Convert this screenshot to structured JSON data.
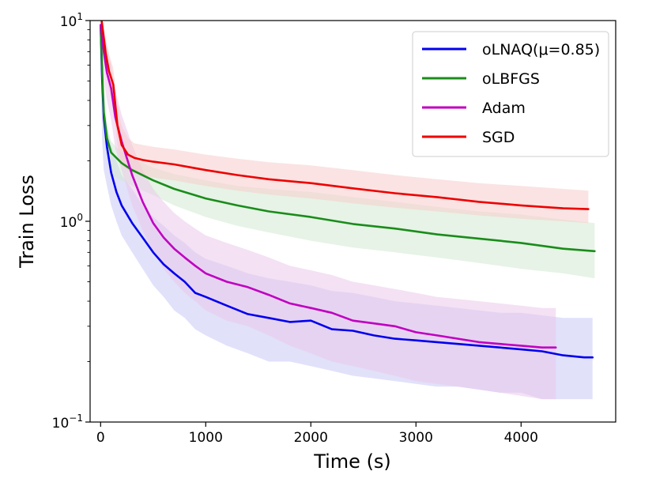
{
  "chart_data": {
    "type": "line",
    "title": "",
    "xlabel": "Time (s)",
    "ylabel": "Train Loss",
    "xscale": "linear",
    "yscale": "log",
    "xlim": [
      -100,
      4900
    ],
    "ylim": [
      0.1,
      10
    ],
    "xticks": [
      0,
      1000,
      2000,
      3000,
      4000
    ],
    "xtick_labels": [
      "0",
      "1000",
      "2000",
      "3000",
      "4000"
    ],
    "yticks": [
      {
        "value": 0.1,
        "base": "10",
        "exp": "−1"
      },
      {
        "value": 1,
        "base": "10",
        "exp": "0"
      },
      {
        "value": 10,
        "base": "10",
        "exp": "1"
      }
    ],
    "grid": false,
    "legend_position": "top-right",
    "series": [
      {
        "name": "oLNAQ(μ=0.85)",
        "color": "#0000ee",
        "band_color": "#c9c9f5",
        "x": [
          0,
          15,
          30,
          60,
          100,
          150,
          200,
          300,
          400,
          500,
          600,
          700,
          800,
          900,
          1000,
          1200,
          1400,
          1600,
          1800,
          2000,
          2200,
          2400,
          2600,
          2800,
          3000,
          3200,
          3400,
          3600,
          3800,
          4000,
          4200,
          4400,
          4600,
          4680
        ],
        "y": [
          9.5,
          5.0,
          3.3,
          2.35,
          1.75,
          1.4,
          1.2,
          0.98,
          0.83,
          0.7,
          0.61,
          0.55,
          0.5,
          0.44,
          0.42,
          0.38,
          0.345,
          0.33,
          0.315,
          0.32,
          0.29,
          0.285,
          0.27,
          0.26,
          0.255,
          0.25,
          0.245,
          0.24,
          0.235,
          0.23,
          0.225,
          0.215,
          0.21,
          0.21
        ],
        "band_low": [
          6.0,
          2.5,
          1.8,
          1.5,
          1.2,
          1.0,
          0.85,
          0.7,
          0.58,
          0.48,
          0.42,
          0.36,
          0.33,
          0.29,
          0.27,
          0.24,
          0.22,
          0.2,
          0.2,
          0.19,
          0.18,
          0.17,
          0.165,
          0.16,
          0.155,
          0.15,
          0.15,
          0.145,
          0.14,
          0.14,
          0.13,
          0.13,
          0.13,
          0.13
        ],
        "band_high": [
          10.0,
          6.0,
          4.0,
          3.0,
          2.4,
          2.0,
          1.7,
          1.45,
          1.2,
          1.05,
          0.95,
          0.85,
          0.78,
          0.7,
          0.65,
          0.6,
          0.55,
          0.52,
          0.5,
          0.48,
          0.45,
          0.44,
          0.42,
          0.4,
          0.39,
          0.38,
          0.37,
          0.36,
          0.35,
          0.35,
          0.34,
          0.33,
          0.33,
          0.33
        ]
      },
      {
        "name": "oLBFGS",
        "color": "#1a8c1a",
        "band_color": "#d2ead2",
        "x": [
          0,
          15,
          30,
          60,
          100,
          200,
          300,
          500,
          700,
          1000,
          1300,
          1600,
          2000,
          2400,
          2800,
          3200,
          3600,
          4000,
          4400,
          4700
        ],
        "y": [
          9.5,
          5.5,
          3.5,
          2.6,
          2.2,
          1.95,
          1.8,
          1.6,
          1.45,
          1.3,
          1.2,
          1.12,
          1.05,
          0.97,
          0.92,
          0.86,
          0.82,
          0.78,
          0.73,
          0.71
        ],
        "band_low": [
          7.0,
          4.0,
          2.8,
          2.0,
          1.7,
          1.6,
          1.5,
          1.35,
          1.2,
          1.05,
          0.95,
          0.88,
          0.8,
          0.74,
          0.7,
          0.66,
          0.62,
          0.58,
          0.55,
          0.52
        ],
        "band_high": [
          10.0,
          7.0,
          4.5,
          3.0,
          2.5,
          2.2,
          2.05,
          1.85,
          1.72,
          1.6,
          1.5,
          1.45,
          1.4,
          1.32,
          1.25,
          1.18,
          1.12,
          1.08,
          1.02,
          0.98
        ]
      },
      {
        "name": "Adam",
        "color": "#c000c0",
        "band_color": "#ebc9eb",
        "x": [
          0,
          30,
          60,
          100,
          140,
          200,
          300,
          400,
          500,
          600,
          700,
          800,
          900,
          1000,
          1200,
          1400,
          1600,
          1800,
          2000,
          2200,
          2400,
          2600,
          2800,
          3000,
          3200,
          3400,
          3600,
          3800,
          4000,
          4200,
          4330
        ],
        "y": [
          9.5,
          7.0,
          5.5,
          4.6,
          3.3,
          2.5,
          1.7,
          1.25,
          0.98,
          0.83,
          0.73,
          0.66,
          0.6,
          0.55,
          0.5,
          0.47,
          0.43,
          0.39,
          0.37,
          0.35,
          0.32,
          0.31,
          0.3,
          0.28,
          0.27,
          0.26,
          0.25,
          0.245,
          0.24,
          0.235,
          0.235
        ],
        "band_low": [
          7.0,
          5.0,
          4.0,
          3.2,
          2.3,
          1.8,
          1.2,
          0.9,
          0.7,
          0.58,
          0.5,
          0.44,
          0.4,
          0.36,
          0.32,
          0.3,
          0.27,
          0.24,
          0.22,
          0.2,
          0.19,
          0.18,
          0.17,
          0.16,
          0.155,
          0.15,
          0.145,
          0.14,
          0.135,
          0.13,
          0.13
        ],
        "band_high": [
          10.0,
          9.0,
          7.5,
          6.0,
          4.5,
          3.4,
          2.4,
          1.8,
          1.45,
          1.25,
          1.1,
          1.0,
          0.92,
          0.85,
          0.78,
          0.72,
          0.66,
          0.6,
          0.57,
          0.54,
          0.5,
          0.48,
          0.46,
          0.44,
          0.42,
          0.41,
          0.4,
          0.39,
          0.38,
          0.37,
          0.37
        ]
      },
      {
        "name": "SGD",
        "color": "#ee0000",
        "band_color": "#f7cccc",
        "x": [
          0,
          20,
          50,
          80,
          120,
          160,
          200,
          260,
          320,
          400,
          500,
          700,
          1000,
          1300,
          1600,
          2000,
          2400,
          2800,
          3200,
          3600,
          4000,
          4400,
          4640
        ],
        "y": [
          11.0,
          9.0,
          6.8,
          5.6,
          4.8,
          3.0,
          2.4,
          2.15,
          2.07,
          2.02,
          1.98,
          1.92,
          1.8,
          1.7,
          1.62,
          1.55,
          1.46,
          1.38,
          1.32,
          1.25,
          1.2,
          1.16,
          1.15
        ],
        "band_low": [
          9.0,
          7.0,
          5.5,
          4.5,
          3.8,
          2.4,
          1.9,
          1.8,
          1.75,
          1.7,
          1.65,
          1.6,
          1.5,
          1.42,
          1.36,
          1.3,
          1.23,
          1.17,
          1.12,
          1.07,
          1.03,
          1.0,
          0.98
        ],
        "band_high": [
          11.0,
          10.0,
          8.0,
          6.8,
          5.8,
          3.8,
          3.0,
          2.6,
          2.45,
          2.4,
          2.35,
          2.28,
          2.15,
          2.05,
          1.97,
          1.9,
          1.8,
          1.7,
          1.62,
          1.55,
          1.5,
          1.45,
          1.42
        ]
      }
    ]
  }
}
